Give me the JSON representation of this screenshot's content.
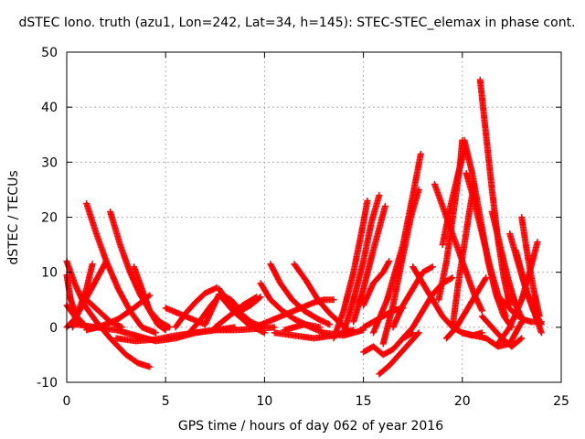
{
  "chart_data": {
    "type": "scatter",
    "title": "dSTEC Iono. truth (azu1, Lon=242, Lat=34, h=145): STEC-STEC_elemax in phase cont.",
    "xlabel": "GPS time / hours of day 062 of year 2016",
    "ylabel": "dSTEC  / TECUs",
    "xlim": [
      0,
      25
    ],
    "ylim": [
      -10,
      50
    ],
    "xticks": [
      "0",
      "5",
      "10",
      "15",
      "20",
      "25"
    ],
    "yticks": [
      "-10",
      "0",
      "10",
      "20",
      "30",
      "40",
      "50"
    ],
    "grid": true,
    "marker": "+",
    "series_color": "#ff0000",
    "series": [
      {
        "x": [
          0.0,
          0.4,
          0.9,
          1.5,
          2.2,
          3.0,
          3.6,
          4.2
        ],
        "y": [
          12,
          8,
          4,
          1,
          -2,
          -5,
          -6.5,
          -7.2
        ]
      },
      {
        "x": [
          0.0,
          0.4,
          0.8,
          1.2,
          1.6
        ],
        "y": [
          4,
          2,
          0.5,
          -0.3,
          0
        ]
      },
      {
        "x": [
          0.0,
          0.2,
          0.5,
          1.0
        ],
        "y": [
          9.5,
          5,
          2,
          0
        ]
      },
      {
        "x": [
          0.0,
          0.4,
          0.8,
          1.4,
          2.0
        ],
        "y": [
          0,
          1.5,
          4,
          8,
          12
        ]
      },
      {
        "x": [
          0.3,
          0.5,
          0.8,
          1.0,
          1.3
        ],
        "y": [
          0,
          2,
          5,
          7,
          11.5
        ]
      },
      {
        "x": [
          1.0,
          1.5,
          2.0,
          2.6,
          3.2,
          3.8,
          4.5
        ],
        "y": [
          22.5,
          17,
          12,
          7,
          3,
          0,
          -1
        ]
      },
      {
        "x": [
          2.2,
          2.7,
          3.2,
          3.7,
          4.2,
          4.7,
          5.2
        ],
        "y": [
          21,
          15,
          10,
          6,
          3,
          1,
          0
        ]
      },
      {
        "x": [
          1.0,
          1.8,
          2.6,
          3.4,
          4.2
        ],
        "y": [
          -0.5,
          0.3,
          1.5,
          3.5,
          5.8
        ]
      },
      {
        "x": [
          3.4,
          3.8,
          4.2,
          4.6,
          5.0
        ],
        "y": [
          11,
          7,
          3,
          0.5,
          -0.5
        ]
      },
      {
        "x": [
          1.0,
          1.6,
          2.2,
          2.8
        ],
        "y": [
          5,
          3,
          1,
          0
        ]
      },
      {
        "x": [
          0.5,
          1.5,
          2.5,
          3.5,
          4.5,
          5.5,
          6.5,
          7.5,
          8.5
        ],
        "y": [
          0.5,
          0,
          -0.5,
          -1.5,
          -2.5,
          -2,
          -1,
          -0.5,
          0
        ]
      },
      {
        "x": [
          2.5,
          3.5,
          4.5,
          5.5,
          6.5,
          7.5,
          8.5,
          9.5,
          10.5
        ],
        "y": [
          -2,
          -2.5,
          -2.2,
          -1.5,
          -1,
          -0.5,
          -0.5,
          -0.3,
          0
        ]
      },
      {
        "x": [
          5.0,
          6.0,
          7.0,
          7.7,
          8.4,
          9.2,
          10.0
        ],
        "y": [
          3.5,
          2,
          0.5,
          6,
          3,
          0.5,
          -1
        ]
      },
      {
        "x": [
          6.2,
          6.8,
          7.3,
          7.8,
          8.3,
          8.8,
          9.3,
          9.8
        ],
        "y": [
          -1,
          1.5,
          4,
          6,
          5,
          3,
          4,
          5.5
        ]
      },
      {
        "x": [
          5.5,
          6.0,
          6.5,
          7.0,
          7.6
        ],
        "y": [
          0,
          2.5,
          4.5,
          6.2,
          7.2
        ]
      },
      {
        "x": [
          7.7,
          8.2,
          8.8,
          9.3,
          9.9
        ],
        "y": [
          7,
          4.5,
          2.5,
          1,
          0
        ]
      },
      {
        "x": [
          7.5,
          8.2,
          8.9,
          9.6
        ],
        "y": [
          0,
          2,
          4,
          5.5
        ]
      },
      {
        "x": [
          9.8,
          10.3,
          10.9,
          11.5,
          12.1,
          12.8
        ],
        "y": [
          8,
          5,
          3,
          1.5,
          0.5,
          0
        ]
      },
      {
        "x": [
          10.3,
          10.8,
          11.4,
          12.0,
          12.7,
          13.3
        ],
        "y": [
          11.5,
          8,
          5,
          3,
          1.5,
          0.5
        ]
      },
      {
        "x": [
          11.5,
          12.1,
          12.7,
          13.3,
          13.9,
          14.4
        ],
        "y": [
          11.5,
          8.5,
          5,
          2.5,
          0.5,
          -1
        ]
      },
      {
        "x": [
          9.5,
          10.5,
          11.5,
          12.5,
          13.0,
          13.5
        ],
        "y": [
          0,
          1.5,
          3,
          4.5,
          5,
          5
        ]
      },
      {
        "x": [
          10.5,
          11.5,
          12.5,
          13.5,
          14.5
        ],
        "y": [
          -1,
          -1.5,
          -2,
          -1.5,
          -0.5
        ]
      },
      {
        "x": [
          11.0,
          12.0,
          13.0,
          14.0,
          15.0
        ],
        "y": [
          -0.5,
          0.5,
          -1,
          -1.5,
          -0.5
        ]
      },
      {
        "x": [
          13.5,
          14.0,
          14.5,
          15.0,
          15.2
        ],
        "y": [
          -2,
          3,
          10,
          19,
          23
        ]
      },
      {
        "x": [
          14.0,
          14.5,
          15.0,
          15.4,
          15.8
        ],
        "y": [
          -1,
          5,
          12,
          19,
          24
        ]
      },
      {
        "x": [
          14.5,
          15.0,
          15.5,
          15.8,
          16.1
        ],
        "y": [
          1,
          7,
          14,
          18,
          22
        ]
      },
      {
        "x": [
          15.0,
          15.5,
          16.0,
          16.3
        ],
        "y": [
          4,
          8,
          10,
          12
        ]
      },
      {
        "x": [
          15.0,
          15.5,
          16.0,
          16.5,
          17.0
        ],
        "y": [
          0,
          1,
          2,
          3,
          3.5
        ]
      },
      {
        "x": [
          15.5,
          16.2,
          17.0,
          17.5,
          17.9
        ],
        "y": [
          -1,
          5,
          15,
          24,
          31.5
        ]
      },
      {
        "x": [
          16.0,
          16.5,
          17.0,
          17.4,
          17.8
        ],
        "y": [
          -3,
          4,
          13,
          20,
          25
        ]
      },
      {
        "x": [
          15.0,
          15.5,
          16.0,
          16.5,
          17.0,
          17.5
        ],
        "y": [
          -4.5,
          -3.5,
          -5,
          -4,
          -2,
          -1
        ]
      },
      {
        "x": [
          15.8,
          16.3,
          16.8,
          17.3,
          17.8
        ],
        "y": [
          -8.5,
          -7,
          -5,
          -3,
          -1
        ]
      },
      {
        "x": [
          17.0,
          17.5,
          18.0,
          18.5,
          19.0,
          19.5
        ],
        "y": [
          -2,
          0,
          3,
          6,
          8,
          9
        ]
      },
      {
        "x": [
          16.5,
          17.0,
          17.5,
          18.0,
          18.5
        ],
        "y": [
          0,
          4,
          7,
          10,
          11
        ]
      },
      {
        "x": [
          17.5,
          18.0,
          18.5,
          19.0,
          19.5,
          20.0,
          20.5,
          21.0
        ],
        "y": [
          11,
          8,
          5,
          2,
          0,
          -1,
          -1.5,
          -1
        ]
      },
      {
        "x": [
          18.6,
          19.1,
          19.6,
          20.1,
          20.6,
          21.0
        ],
        "y": [
          26,
          21,
          16,
          11,
          6,
          3
        ]
      },
      {
        "x": [
          18.8,
          19.2,
          19.6,
          19.9,
          20.0
        ],
        "y": [
          5,
          12,
          22,
          30,
          34
        ]
      },
      {
        "x": [
          19.0,
          19.4,
          19.8,
          20.1
        ],
        "y": [
          15,
          22,
          28,
          32
        ]
      },
      {
        "x": [
          19.2,
          19.7,
          20.2,
          20.7,
          21.2
        ],
        "y": [
          -2,
          0,
          3,
          6,
          9
        ]
      },
      {
        "x": [
          19.5,
          19.8,
          20.1,
          20.4,
          20.6
        ],
        "y": [
          0,
          8,
          15,
          22,
          26
        ]
      },
      {
        "x": [
          20.1,
          20.5,
          20.9,
          21.3,
          21.7,
          22.1,
          22.5
        ],
        "y": [
          34,
          28,
          20,
          12,
          6,
          2,
          0
        ]
      },
      {
        "x": [
          20.2,
          20.6,
          21.0,
          21.4,
          21.8,
          22.2
        ],
        "y": [
          28,
          23,
          17,
          11,
          6,
          2
        ]
      },
      {
        "x": [
          20.9,
          21.2,
          21.5,
          21.8,
          22.1,
          22.4
        ],
        "y": [
          45,
          35,
          25,
          16,
          9,
          4
        ]
      },
      {
        "x": [
          21.5,
          21.9,
          22.3,
          22.7,
          23.1
        ],
        "y": [
          21,
          15,
          9,
          4,
          1
        ]
      },
      {
        "x": [
          22.4,
          22.8,
          23.2,
          23.6,
          24.0
        ],
        "y": [
          17,
          12,
          7,
          3,
          0.5
        ]
      },
      {
        "x": [
          22.7,
          23.0,
          23.3,
          23.6,
          23.9
        ],
        "y": [
          14,
          10,
          6,
          3,
          1
        ]
      },
      {
        "x": [
          23.0,
          23.3,
          23.6,
          23.9
        ],
        "y": [
          20,
          13,
          7,
          2
        ]
      },
      {
        "x": [
          21.8,
          22.4,
          23.0,
          23.4,
          23.8
        ],
        "y": [
          -3,
          0,
          5,
          10,
          15.5
        ]
      },
      {
        "x": [
          21.0,
          21.5,
          22.0,
          22.5,
          23.0
        ],
        "y": [
          2,
          0,
          -2,
          -3.5,
          -2
        ]
      },
      {
        "x": [
          20.0,
          20.6,
          21.2,
          21.8,
          22.4,
          23.0
        ],
        "y": [
          -1,
          -1.5,
          -2,
          -3.5,
          -3,
          1
        ]
      },
      {
        "x": [
          22.0,
          22.5,
          23.0,
          23.5,
          24.0
        ],
        "y": [
          5,
          3,
          1.5,
          1,
          1
        ]
      },
      {
        "x": [
          23.5,
          23.7,
          23.9,
          24.0
        ],
        "y": [
          5,
          2,
          0,
          -1
        ]
      }
    ]
  }
}
